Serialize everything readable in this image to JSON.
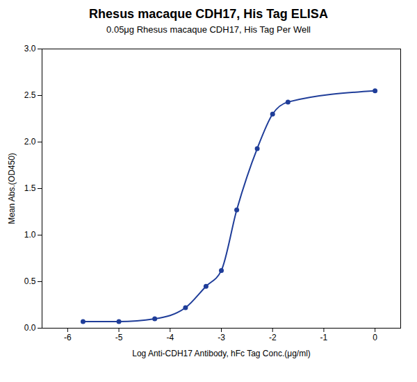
{
  "chart_data": {
    "type": "line",
    "title": "Rhesus macaque CDH17, His Tag ELISA",
    "subtitle": "0.05μg Rhesus macaque CDH17, His Tag Per Well",
    "xlabel": "Log Anti-CDH17 Antibody, hFc Tag Conc.(μg/ml)",
    "ylabel": "Mean Abs.(OD450)",
    "x": [
      -5.7,
      -5.0,
      -4.3,
      -3.7,
      -3.3,
      -3.0,
      -2.7,
      -2.3,
      -2.0,
      -1.7,
      0.0
    ],
    "values": [
      0.07,
      0.07,
      0.1,
      0.22,
      0.45,
      0.62,
      1.27,
      1.93,
      2.3,
      2.43,
      2.55
    ],
    "color": "#1f3d99",
    "marker": "circle",
    "line_style": "solid",
    "xlim": [
      -6.5,
      0.5
    ],
    "ylim": [
      0.0,
      3.0
    ],
    "xticks": [
      -6,
      -5,
      -4,
      -3,
      -2,
      -1,
      0
    ],
    "yticks": [
      {
        "value": 0.0,
        "label": "0.0"
      },
      0.5,
      {
        "value": 1.0,
        "label": "1.0"
      },
      1.5,
      {
        "value": 2.0,
        "label": "2.0"
      },
      2.5,
      {
        "value": 3.0,
        "label": "3.0"
      }
    ]
  }
}
